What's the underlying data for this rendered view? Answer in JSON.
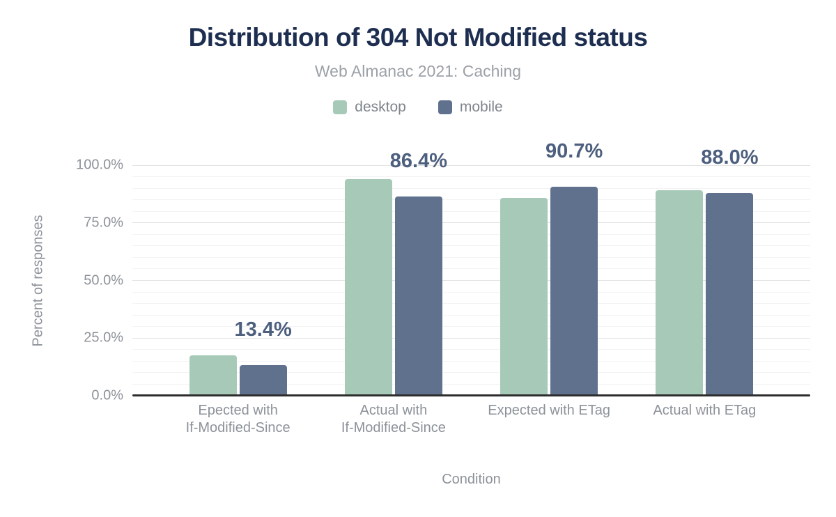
{
  "chart_data": {
    "type": "bar",
    "title": "Distribution of 304 Not Modified status",
    "subtitle": "Web Almanac 2021: Caching",
    "categories": [
      "Epected with\nIf-Modified-Since",
      "Actual with\nIf-Modified-Since",
      "Expected with ETag",
      "Actual with ETag"
    ],
    "series": [
      {
        "name": "desktop",
        "color": "#a7c9b8",
        "values": [
          17.5,
          94.0,
          85.8,
          89.0
        ]
      },
      {
        "name": "mobile",
        "color": "#60718e",
        "values": [
          13.4,
          86.4,
          90.7,
          88.0
        ]
      }
    ],
    "data_labels": {
      "anchored_series": "mobile",
      "values": [
        "13.4%",
        "86.4%",
        "90.7%",
        "88.0%"
      ]
    },
    "xlabel": "Condition",
    "ylabel": "Percent of responses",
    "ylim": [
      0,
      100
    ],
    "yticks": [
      {
        "v": 0,
        "label": "0.0%"
      },
      {
        "v": 25,
        "label": "25.0%"
      },
      {
        "v": 50,
        "label": "50.0%"
      },
      {
        "v": 75,
        "label": "75.0%"
      },
      {
        "v": 100,
        "label": "100.0%"
      }
    ],
    "grid": {
      "major_step": 25,
      "minor_step": 5,
      "on": true
    },
    "legend_position": "top",
    "colors": {
      "title": "#1d2e50",
      "subtitle": "#9ca1a7",
      "legend_text": "#7f858c",
      "axis_text": "#8d9299",
      "data_label": "#4d5f7e",
      "axis_line": "#2d2d2d",
      "grid_major": "#e3e3e3",
      "grid_minor": "#f3f3f3",
      "background": "#ffffff"
    }
  }
}
